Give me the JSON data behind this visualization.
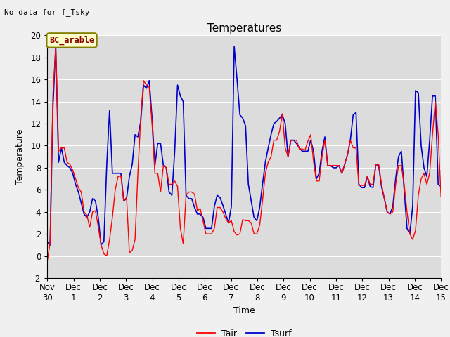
{
  "title": "Temperatures",
  "xlabel": "Time",
  "ylabel": "Temperature",
  "top_left_text": "No data for f_Tsky",
  "legend_box_text": "BC_arable",
  "ylim": [
    -2,
    20
  ],
  "yticks": [
    -2,
    0,
    2,
    4,
    6,
    8,
    10,
    12,
    14,
    16,
    18,
    20
  ],
  "xtick_labels": [
    "Nov 30",
    "Dec 1",
    "Dec 2",
    "Dec 3",
    "Dec 4",
    "Dec 5",
    "Dec 6",
    "Dec 7",
    "Dec 8",
    "Dec 9",
    "Dec 10",
    "Dec 11",
    "Dec 12",
    "Dec 13",
    "Dec 14",
    "Dec 15"
  ],
  "tair_color": "#ff0000",
  "tsurf_color": "#0000cc",
  "plot_bg_color": "#dcdcdc",
  "fig_bg_color": "#f0f0f0",
  "legend_line1_label": "Tair",
  "legend_line2_label": "Tsurf",
  "tair": [
    -0.5,
    1.2,
    14.5,
    19.0,
    9.5,
    9.8,
    9.8,
    8.5,
    8.3,
    7.8,
    7.0,
    6.2,
    5.8,
    4.0,
    3.7,
    2.6,
    4.0,
    4.1,
    2.7,
    1.0,
    0.2,
    0.0,
    1.5,
    3.5,
    6.0,
    7.2,
    7.3,
    5.0,
    5.3,
    0.3,
    0.5,
    1.5,
    7.5,
    12.5,
    15.9,
    15.5,
    15.3,
    12.0,
    7.5,
    7.5,
    5.8,
    8.2,
    8.0,
    6.5,
    6.5,
    6.8,
    6.3,
    2.5,
    1.1,
    5.5,
    5.8,
    5.8,
    5.6,
    4.1,
    4.3,
    3.2,
    2.0,
    2.0,
    2.0,
    2.5,
    4.4,
    4.4,
    4.0,
    3.4,
    3.0,
    3.2,
    2.2,
    1.9,
    2.0,
    3.3,
    3.2,
    3.2,
    3.0,
    2.0,
    2.0,
    2.8,
    5.0,
    7.5,
    8.5,
    9.0,
    10.5,
    10.5,
    11.3,
    12.9,
    9.8,
    9.0,
    10.5,
    10.5,
    10.5,
    9.7,
    9.7,
    9.6,
    10.4,
    11.0,
    8.6,
    6.8,
    6.8,
    9.0,
    10.5,
    8.2,
    8.2,
    8.2,
    8.2,
    8.2,
    7.5,
    8.3,
    9.2,
    10.5,
    9.8,
    9.8,
    6.4,
    6.4,
    6.4,
    7.2,
    6.5,
    6.5,
    8.3,
    8.3,
    6.5,
    5.2,
    4.0,
    3.8,
    4.0,
    6.5,
    8.2,
    8.2,
    6.5,
    4.0,
    2.0,
    1.5,
    2.3,
    5.5,
    7.0,
    7.5,
    6.5,
    7.5,
    11.0,
    14.0,
    11.0,
    5.4
  ],
  "tsurf": [
    1.3,
    1.0,
    13.5,
    19.0,
    8.5,
    9.8,
    8.5,
    8.2,
    8.0,
    7.5,
    6.5,
    5.8,
    4.8,
    3.8,
    3.5,
    4.0,
    5.2,
    5.0,
    3.5,
    1.0,
    1.3,
    8.2,
    13.2,
    7.5,
    7.5,
    7.5,
    7.5,
    5.0,
    5.2,
    7.2,
    8.3,
    11.0,
    10.8,
    12.2,
    15.5,
    15.2,
    15.9,
    12.5,
    8.2,
    10.2,
    10.2,
    8.2,
    8.0,
    5.8,
    5.5,
    9.5,
    15.5,
    14.5,
    14.0,
    5.5,
    5.2,
    5.2,
    4.4,
    3.8,
    3.8,
    3.5,
    2.5,
    2.5,
    2.5,
    4.5,
    5.5,
    5.3,
    4.6,
    3.8,
    3.0,
    4.5,
    19.0,
    16.0,
    12.8,
    12.5,
    11.8,
    6.5,
    5.0,
    3.5,
    3.2,
    4.4,
    6.5,
    8.5,
    9.8,
    11.0,
    12.0,
    12.2,
    12.5,
    12.8,
    12.0,
    9.0,
    10.5,
    10.5,
    10.2,
    9.8,
    9.5,
    9.5,
    9.5,
    10.5,
    9.5,
    7.0,
    7.5,
    9.5,
    10.8,
    8.2,
    8.2,
    8.0,
    8.0,
    8.2,
    7.5,
    8.3,
    9.2,
    10.5,
    12.8,
    13.0,
    6.5,
    6.2,
    6.2,
    7.2,
    6.3,
    6.2,
    8.3,
    8.2,
    6.3,
    5.2,
    4.0,
    3.8,
    4.5,
    7.0,
    9.0,
    9.5,
    6.0,
    2.5,
    2.0,
    4.5,
    15.0,
    14.8,
    10.0,
    8.0,
    7.2,
    10.5,
    14.5,
    14.5,
    6.5,
    6.3
  ]
}
